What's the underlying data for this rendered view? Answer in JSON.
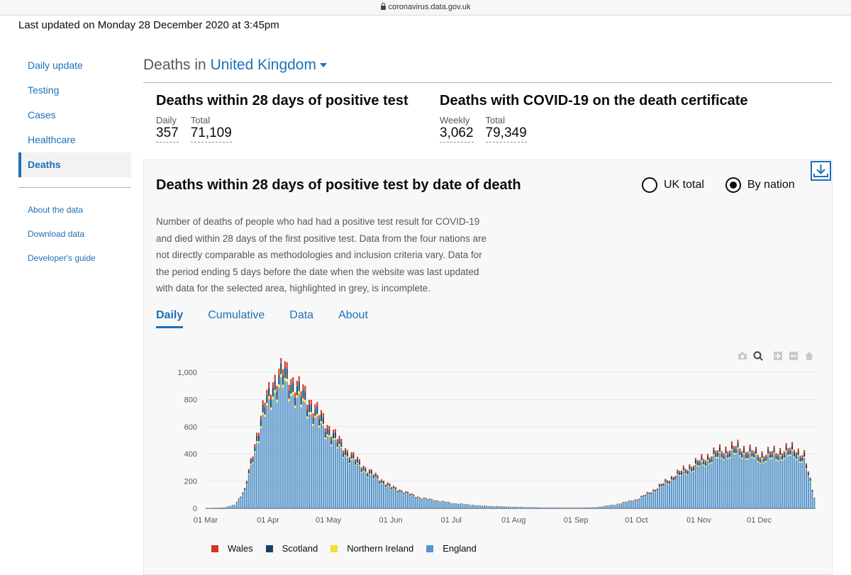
{
  "browser": {
    "url": "coronavirus.data.gov.uk"
  },
  "last_updated": "Last updated on Monday 28 December 2020 at 3:45pm",
  "sidebar": {
    "items": [
      {
        "label": "Daily update"
      },
      {
        "label": "Testing"
      },
      {
        "label": "Cases"
      },
      {
        "label": "Healthcare"
      },
      {
        "label": "Deaths"
      }
    ],
    "secondary": [
      {
        "label": "About the data"
      },
      {
        "label": "Download data"
      },
      {
        "label": "Developer's guide"
      }
    ]
  },
  "page": {
    "title_prefix": "Deaths in",
    "area": "United Kingdom"
  },
  "headline_left": {
    "title": "Deaths within 28 days of positive test",
    "metric1_label": "Daily",
    "metric1_value": "357",
    "metric2_label": "Total",
    "metric2_value": "71,109"
  },
  "headline_right": {
    "title": "Deaths with COVID-19 on the death certificate",
    "metric1_label": "Weekly",
    "metric1_value": "3,062",
    "metric2_label": "Total",
    "metric2_value": "79,349"
  },
  "card": {
    "title": "Deaths within 28 days of positive test by date of death",
    "radio_uk": "UK total",
    "radio_nation": "By nation",
    "description": "Number of deaths of people who had had a positive test result for COVID-19 and died within 28 days of the first positive test. Data from the four nations are not directly comparable as methodologies and inclusion criteria vary. Data for the period ending 5 days before the date when the website was last updated with data for the selected area, highlighted in grey, is incomplete.",
    "tabs": [
      "Daily",
      "Cumulative",
      "Data",
      "About"
    ]
  },
  "colors": {
    "wales": "#d4351c",
    "scotland": "#12436d",
    "northern_ireland": "#f4dd2b",
    "england": "#5694ca"
  },
  "chart_data": {
    "type": "bar",
    "stacked": true,
    "x_start": "2020-03-01",
    "x_end": "2020-12-28",
    "xticks": [
      "01 Mar",
      "01 Apr",
      "01 May",
      "01 Jun",
      "01 Jul",
      "01 Aug",
      "01 Sep",
      "01 Oct",
      "01 Nov",
      "01 Dec"
    ],
    "yticks": [
      "0",
      "200",
      "400",
      "600",
      "800",
      "1,000"
    ],
    "ylim": [
      0,
      1000
    ],
    "grid": true,
    "legend_position": "bottom",
    "series": [
      {
        "name": "Wales",
        "color": "#d4351c"
      },
      {
        "name": "Scotland",
        "color": "#12436d"
      },
      {
        "name": "Northern Ireland",
        "color": "#f4dd2b"
      },
      {
        "name": "England",
        "color": "#5694ca"
      }
    ],
    "england_anchors": [
      [
        "2020-03-01",
        2
      ],
      [
        "2020-03-10",
        6
      ],
      [
        "2020-03-15",
        25
      ],
      [
        "2020-03-20",
        120
      ],
      [
        "2020-03-25",
        420
      ],
      [
        "2020-03-30",
        690
      ],
      [
        "2020-04-03",
        820
      ],
      [
        "2020-04-08",
        910
      ],
      [
        "2020-04-12",
        840
      ],
      [
        "2020-04-20",
        720
      ],
      [
        "2020-05-01",
        520
      ],
      [
        "2020-05-10",
        370
      ],
      [
        "2020-05-20",
        250
      ],
      [
        "2020-06-01",
        140
      ],
      [
        "2020-06-15",
        70
      ],
      [
        "2020-07-01",
        35
      ],
      [
        "2020-07-15",
        18
      ],
      [
        "2020-08-01",
        10
      ],
      [
        "2020-08-15",
        6
      ],
      [
        "2020-09-01",
        5
      ],
      [
        "2020-09-10",
        7
      ],
      [
        "2020-09-20",
        25
      ],
      [
        "2020-10-01",
        60
      ],
      [
        "2020-10-10",
        125
      ],
      [
        "2020-10-20",
        220
      ],
      [
        "2020-11-01",
        310
      ],
      [
        "2020-11-10",
        370
      ],
      [
        "2020-11-20",
        400
      ],
      [
        "2020-12-01",
        350
      ],
      [
        "2020-12-10",
        370
      ],
      [
        "2020-12-18",
        390
      ],
      [
        "2020-12-23",
        340
      ],
      [
        "2020-12-26",
        180
      ],
      [
        "2020-12-28",
        70
      ]
    ],
    "wales_fraction": 0.05,
    "scotland_fraction": 0.08,
    "northern_ireland_fraction": 0.025
  }
}
